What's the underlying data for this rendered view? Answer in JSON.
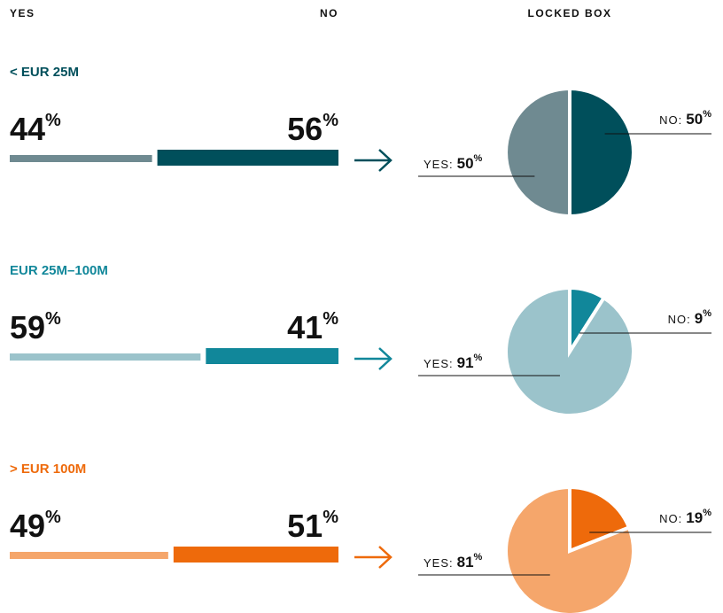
{
  "headers": {
    "yes": "YES",
    "no": "NO",
    "locked_box": "LOCKED BOX"
  },
  "chart_data": [
    {
      "type": "bar",
      "title": "< EUR 25M",
      "values": [
        44,
        56
      ],
      "colors": [
        "#6f8a91",
        "#004f5b"
      ],
      "unit": "%"
    },
    {
      "type": "pie",
      "categories": [
        "YES:",
        "NO:"
      ],
      "values": [
        50,
        50
      ],
      "colors": [
        "#6f8a91",
        "#004f5b"
      ],
      "unit": "%"
    },
    {
      "type": "bar",
      "title": "EUR 25M–100M",
      "values": [
        59,
        41
      ],
      "colors": [
        "#9bc3cb",
        "#11879a"
      ],
      "unit": "%"
    },
    {
      "type": "pie",
      "categories": [
        "YES:",
        "NO:"
      ],
      "values": [
        91,
        9
      ],
      "colors": [
        "#9bc3cb",
        "#11879a"
      ],
      "unit": "%"
    },
    {
      "type": "bar",
      "title": "> EUR 100M",
      "values": [
        49,
        51
      ],
      "colors": [
        "#f5a66b",
        "#ee6a0b"
      ],
      "unit": "%"
    },
    {
      "type": "pie",
      "categories": [
        "YES:",
        "NO:"
      ],
      "values": [
        81,
        19
      ],
      "colors": [
        "#f5a66b",
        "#ee6a0b"
      ],
      "unit": "%"
    }
  ]
}
